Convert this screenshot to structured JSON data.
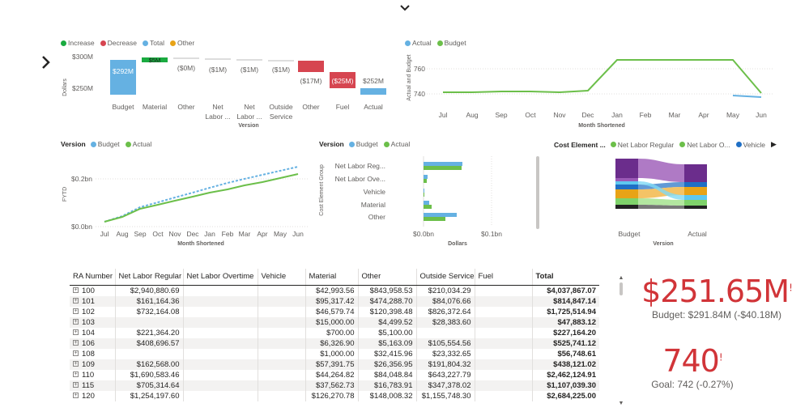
{
  "waterfall": {
    "legend": [
      {
        "label": "Increase",
        "color": "#1aab40"
      },
      {
        "label": "Decrease",
        "color": "#d64550"
      },
      {
        "label": "Total",
        "color": "#65b1e2"
      },
      {
        "label": "Other",
        "color": "#e8a317"
      }
    ],
    "ylabel": "Dollars",
    "xlabel": "Version",
    "yticks": [
      "$300M",
      "$250M"
    ],
    "categories": [
      "Budget",
      "Material",
      "Other",
      "Net Labor ...",
      "Net Labor ...",
      "Outside Service",
      "Other",
      "Fuel",
      "Actual"
    ],
    "data_labels": [
      "$292M",
      "$5M",
      "($0M)",
      "($1M)",
      "($1M)",
      "($1M)",
      "($17M)",
      "($25M)",
      "$252M"
    ]
  },
  "line_top": {
    "legend": [
      {
        "label": "Actual",
        "color": "#65b1e2"
      },
      {
        "label": "Budget",
        "color": "#6cbf4a"
      }
    ],
    "ylabel": "Actual and Budget",
    "xlabel": "Month Shortened",
    "yticks": [
      "760",
      "740"
    ],
    "months": [
      "Jul",
      "Aug",
      "Sep",
      "Oct",
      "Nov",
      "Dec",
      "Jan",
      "Feb",
      "Mar",
      "Apr",
      "May",
      "Jun"
    ]
  },
  "fytd": {
    "legend_title": "Version",
    "legend": [
      {
        "label": "Budget",
        "color": "#65b1e2"
      },
      {
        "label": "Actual",
        "color": "#6cbf4a"
      }
    ],
    "ylabel": "FYTD",
    "xlabel": "Month Shortened",
    "yticks": [
      "$0.2bn",
      "$0.0bn"
    ],
    "months": [
      "Jul",
      "Aug",
      "Sep",
      "Oct",
      "Nov",
      "Dec",
      "Jan",
      "Feb",
      "Mar",
      "Apr",
      "May",
      "Jun"
    ]
  },
  "hbar": {
    "legend_title": "Version",
    "legend": [
      {
        "label": "Budget",
        "color": "#65b1e2"
      },
      {
        "label": "Actual",
        "color": "#6cbf4a"
      }
    ],
    "ylabel": "Cost Element Group",
    "xlabel": "Dollars",
    "xticks": [
      "$0.0bn",
      "$0.1bn"
    ],
    "categories": [
      "Net Labor Reg...",
      "Net Labor Ove...",
      "Vehicle",
      "Material",
      "Other"
    ]
  },
  "ribbon": {
    "legend_title": "Cost Element ...",
    "legend": [
      {
        "label": "Net Labor Regular",
        "color": "#6cbf4a"
      },
      {
        "label": "Net Labor O...",
        "color": "#6cbf4a"
      },
      {
        "label": "Vehicle",
        "color": "#1f6fc5"
      }
    ],
    "xlabel": "Version",
    "categories": [
      "Budget",
      "Actual"
    ],
    "colors": [
      "#6b2d8c",
      "#9b59b6",
      "#e8a317",
      "#5ec8f0",
      "#1f6fc5",
      "#7fd36b",
      "#222222"
    ]
  },
  "table": {
    "headers": [
      "RA Number",
      "Net Labor Regular",
      "Net Labor Overtime",
      "Vehicle",
      "Material",
      "Other",
      "Outside Service",
      "Fuel",
      "Total"
    ],
    "rows": [
      [
        "100",
        "$2,940,880.69",
        "",
        "",
        "$42,993.56",
        "$843,958.53",
        "$210,034.29",
        "",
        "$4,037,867.07"
      ],
      [
        "101",
        "$161,164.36",
        "",
        "",
        "$95,317.42",
        "$474,288.70",
        "$84,076.66",
        "",
        "$814,847.14"
      ],
      [
        "102",
        "$732,164.08",
        "",
        "",
        "$46,579.74",
        "$120,398.48",
        "$826,372.64",
        "",
        "$1,725,514.94"
      ],
      [
        "103",
        "",
        "",
        "",
        "$15,000.00",
        "$4,499.52",
        "$28,383.60",
        "",
        "$47,883.12"
      ],
      [
        "104",
        "$221,364.20",
        "",
        "",
        "$700.00",
        "$5,100.00",
        "",
        "",
        "$227,164.20"
      ],
      [
        "106",
        "$408,696.57",
        "",
        "",
        "$6,326.90",
        "$5,163.09",
        "$105,554.56",
        "",
        "$525,741.12"
      ],
      [
        "108",
        "",
        "",
        "",
        "$1,000.00",
        "$32,415.96",
        "$23,332.65",
        "",
        "$56,748.61"
      ],
      [
        "109",
        "$162,568.00",
        "",
        "",
        "$57,391.75",
        "$26,356.95",
        "$191,804.32",
        "",
        "$438,121.02"
      ],
      [
        "110",
        "$1,690,583.46",
        "",
        "",
        "$44,264.82",
        "$84,048.84",
        "$643,227.79",
        "",
        "$2,462,124.91"
      ],
      [
        "115",
        "$705,314.64",
        "",
        "",
        "$37,562.73",
        "$16,783.91",
        "$347,378.02",
        "",
        "$1,107,039.30"
      ],
      [
        "120",
        "$1,254,197.60",
        "",
        "",
        "$126,270.78",
        "$148,008.32",
        "$1,155,748.30",
        "",
        "$2,684,225.00"
      ]
    ]
  },
  "kpi1": {
    "value": "$251.65M",
    "goal": "Budget: $291.84M (-$40.18M)",
    "marker": "!"
  },
  "kpi2": {
    "value": "740",
    "goal": "Goal: 742 (-0.27%)",
    "marker": "!"
  },
  "nav": {
    "collapse_icon": "chevron-down-icon",
    "nav_icon": "chevron-right-icon",
    "more_icon": "caret-right-icon"
  }
}
